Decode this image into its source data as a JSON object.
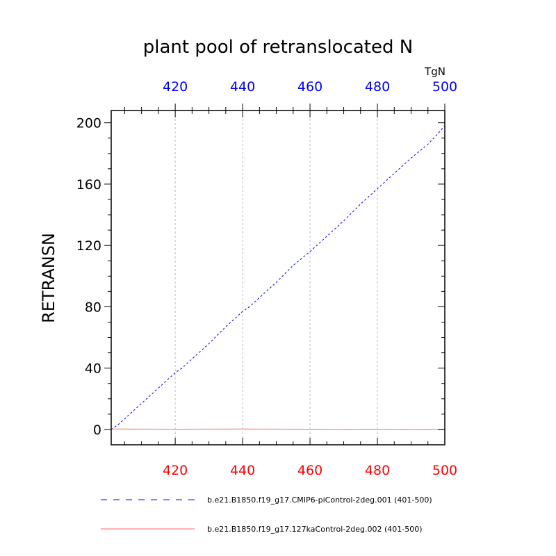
{
  "chart_data": {
    "type": "line",
    "title": "plant pool of retranslocated N",
    "units": "TgN",
    "ylabel": "RETRANSN",
    "xlim": [
      401,
      500
    ],
    "ylim": [
      -10,
      208
    ],
    "yticks": [
      0,
      40,
      80,
      120,
      160,
      200
    ],
    "xticks_major": [
      420,
      440,
      460,
      480,
      500
    ],
    "xticks_bottom_color": "#ff0000",
    "xticks_top_color": "#0000ff",
    "grid_x": true,
    "legend_position": "bottom",
    "series": [
      {
        "name": "b.e21.B1850.f19_g17.CMIP6-piControl-2deg.001 (401-500)",
        "color": "#0000ff",
        "style": "dashed",
        "x": [
          401,
          403,
          406,
          410,
          415,
          419,
          420,
          422,
          425,
          430,
          435,
          440,
          442,
          445,
          450,
          455,
          460,
          463,
          466,
          470,
          475,
          480,
          485,
          490,
          495,
          498,
          500
        ],
        "values": [
          0,
          3,
          9,
          17,
          27,
          35,
          37,
          40,
          46,
          56,
          67,
          77,
          80,
          86,
          96,
          107,
          116,
          122,
          128,
          136,
          147,
          157,
          167,
          177,
          186,
          193,
          198
        ]
      },
      {
        "name": "b.e21.B1850.f19_g17.127kaControl-2deg.002 (401-500)",
        "color": "#ff6666",
        "style": "solid",
        "x": [
          401,
          420,
          440,
          460,
          470,
          480,
          490,
          500
        ],
        "values": [
          0.3,
          0.2,
          0.3,
          0.2,
          0.1,
          0.2,
          0.1,
          0.2
        ]
      }
    ]
  }
}
